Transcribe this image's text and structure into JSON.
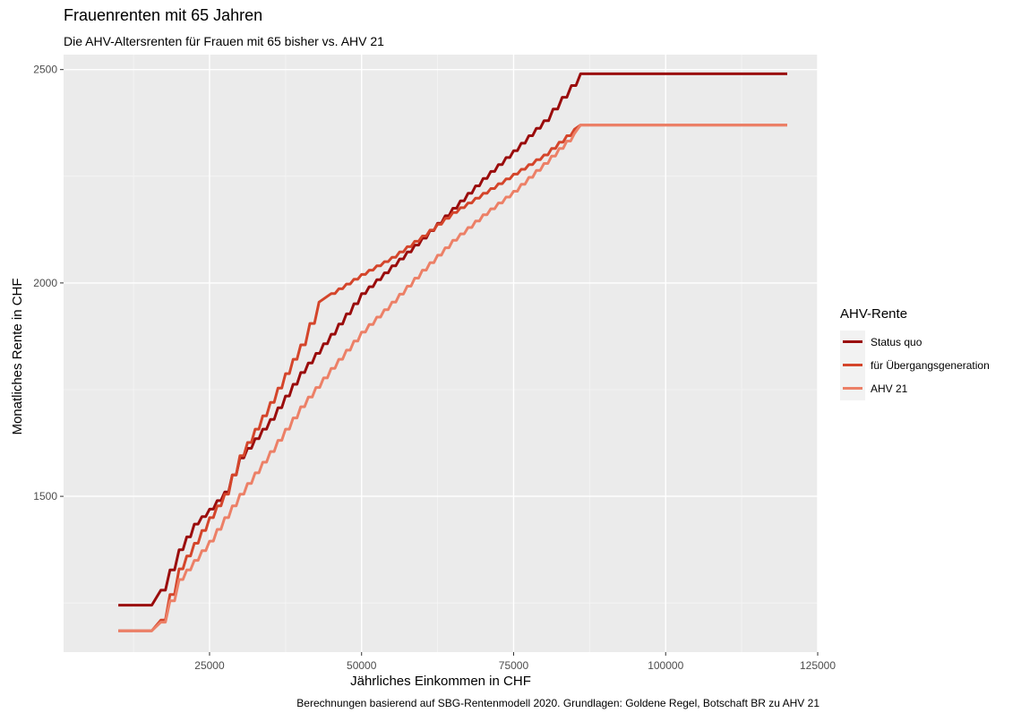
{
  "chart_data": {
    "type": "line",
    "title": "Frauenrenten mit 65 Jahren",
    "subtitle": "Die AHV-Altersrenten für Frauen mit 65 bisher vs. AHV 21",
    "xlabel": "Jährliches Einkommen in CHF",
    "ylabel": "Monatliches Rente in CHF",
    "caption": "Berechnungen basierend auf SBG-Rentenmodell 2020. Grundlagen: Goldene Regel, Botschaft BR zu AHV 21",
    "xlim": [
      1000,
      125000
    ],
    "ylim": [
      1135,
      2535
    ],
    "x_ticks": [
      25000,
      50000,
      75000,
      100000,
      125000
    ],
    "x_tick_labels": [
      "25000",
      "50000",
      "75000",
      "100000",
      "125000"
    ],
    "y_ticks": [
      1500,
      2000,
      2500
    ],
    "y_tick_labels": [
      "1500",
      "2000",
      "2500"
    ],
    "grid": true,
    "legend_title": "AHV-Rente",
    "legend_position": "right",
    "series": [
      {
        "name": "Status quo",
        "color": "#9a0c0c",
        "points": [
          [
            10000,
            1245
          ],
          [
            15500,
            1245
          ],
          [
            17000,
            1280
          ],
          [
            20000,
            1375
          ],
          [
            22500,
            1435
          ],
          [
            25000,
            1470
          ],
          [
            27500,
            1510
          ],
          [
            30000,
            1590
          ],
          [
            35000,
            1680
          ],
          [
            40000,
            1790
          ],
          [
            45000,
            1880
          ],
          [
            50000,
            1975
          ],
          [
            55000,
            2040
          ],
          [
            60000,
            2105
          ],
          [
            65000,
            2175
          ],
          [
            70000,
            2245
          ],
          [
            75000,
            2310
          ],
          [
            80000,
            2380
          ],
          [
            86000,
            2490
          ],
          [
            120000,
            2490
          ]
        ]
      },
      {
        "name": "für Übergangsgeneration",
        "color": "#d4452b",
        "points": [
          [
            10000,
            1185
          ],
          [
            15500,
            1185
          ],
          [
            17000,
            1210
          ],
          [
            20000,
            1330
          ],
          [
            25000,
            1450
          ],
          [
            27500,
            1505
          ],
          [
            30000,
            1595
          ],
          [
            35000,
            1720
          ],
          [
            40000,
            1855
          ],
          [
            43000,
            1955
          ],
          [
            45000,
            1975
          ],
          [
            50000,
            2020
          ],
          [
            55000,
            2060
          ],
          [
            60000,
            2110
          ],
          [
            65000,
            2165
          ],
          [
            70000,
            2210
          ],
          [
            75000,
            2255
          ],
          [
            80000,
            2300
          ],
          [
            85000,
            2360
          ],
          [
            86000,
            2370
          ],
          [
            120000,
            2370
          ]
        ]
      },
      {
        "name": "AHV 21",
        "color": "#ec8067",
        "points": [
          [
            10000,
            1185
          ],
          [
            15500,
            1185
          ],
          [
            17000,
            1205
          ],
          [
            20000,
            1305
          ],
          [
            25000,
            1395
          ],
          [
            30000,
            1505
          ],
          [
            35000,
            1605
          ],
          [
            40000,
            1710
          ],
          [
            45000,
            1800
          ],
          [
            50000,
            1885
          ],
          [
            55000,
            1955
          ],
          [
            60000,
            2030
          ],
          [
            65000,
            2100
          ],
          [
            70000,
            2160
          ],
          [
            75000,
            2215
          ],
          [
            80000,
            2280
          ],
          [
            85000,
            2350
          ],
          [
            86000,
            2370
          ],
          [
            120000,
            2370
          ]
        ]
      }
    ]
  }
}
